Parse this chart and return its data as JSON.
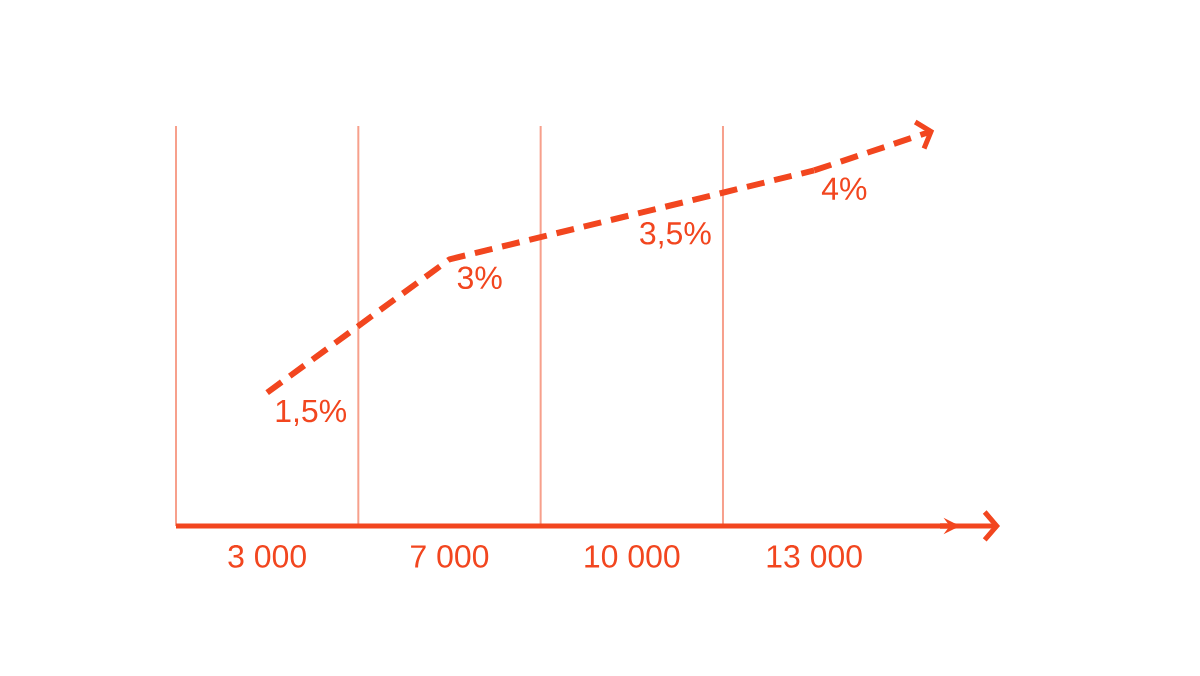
{
  "chart_data": {
    "type": "line",
    "categories": [
      "3 000",
      "7 000",
      "10 000",
      "13 000"
    ],
    "values": [
      1.5,
      3,
      3.5,
      4
    ],
    "value_labels": [
      "1,5%",
      "3%",
      "3,5%",
      "4%"
    ],
    "color": "#f2461f",
    "line_style": "dashed",
    "ylim": [
      0,
      4.5
    ],
    "tick_labels": "x",
    "grid": "x"
  }
}
